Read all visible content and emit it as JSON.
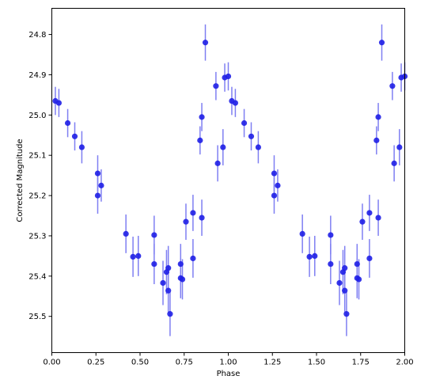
{
  "chart_data": {
    "type": "scatter",
    "title": "",
    "xlabel": "Phase",
    "ylabel": "Corrected Magnitude",
    "xlim": [
      0,
      2
    ],
    "ylim": [
      25.59,
      24.735
    ],
    "y_inverted": true,
    "grid": false,
    "x_ticks": [
      0,
      0.25,
      0.5,
      0.75,
      1.0,
      1.25,
      1.5,
      1.75,
      2.0
    ],
    "x_tick_labels": [
      "0.00",
      "0.25",
      "0.50",
      "0.75",
      "1.00",
      "1.25",
      "1.50",
      "1.75",
      "2.00"
    ],
    "y_ticks": [
      24.8,
      24.9,
      25.0,
      25.1,
      25.2,
      25.3,
      25.4,
      25.5
    ],
    "y_tick_labels": [
      "24.8",
      "24.9",
      "25.0",
      "25.1",
      "25.2",
      "25.3",
      "25.4",
      "25.5"
    ],
    "colors": {
      "marker": "#1f1fe6",
      "errorbar": "#7f7ff2"
    },
    "series": [
      {
        "points": [
          {
            "x": 0.02,
            "y": 24.965,
            "err": 0.035
          },
          {
            "x": 0.04,
            "y": 24.97,
            "err": 0.035
          },
          {
            "x": 0.09,
            "y": 25.02,
            "err": 0.035
          },
          {
            "x": 0.13,
            "y": 25.053,
            "err": 0.035
          },
          {
            "x": 0.17,
            "y": 25.08,
            "err": 0.04
          },
          {
            "x": 0.26,
            "y": 25.145,
            "err": 0.045
          },
          {
            "x": 0.26,
            "y": 25.2,
            "err": 0.045
          },
          {
            "x": 0.28,
            "y": 25.175,
            "err": 0.04
          },
          {
            "x": 0.42,
            "y": 25.295,
            "err": 0.048
          },
          {
            "x": 0.46,
            "y": 25.352,
            "err": 0.05
          },
          {
            "x": 0.49,
            "y": 25.35,
            "err": 0.05
          },
          {
            "x": 0.58,
            "y": 25.298,
            "err": 0.048
          },
          {
            "x": 0.58,
            "y": 25.37,
            "err": 0.05
          },
          {
            "x": 0.63,
            "y": 25.417,
            "err": 0.055
          },
          {
            "x": 0.65,
            "y": 25.39,
            "err": 0.055
          },
          {
            "x": 0.66,
            "y": 25.38,
            "err": 0.055
          },
          {
            "x": 0.66,
            "y": 25.436,
            "err": 0.055
          },
          {
            "x": 0.67,
            "y": 25.494,
            "err": 0.055
          },
          {
            "x": 0.73,
            "y": 25.405,
            "err": 0.05
          },
          {
            "x": 0.73,
            "y": 25.37,
            "err": 0.05
          },
          {
            "x": 0.74,
            "y": 25.408,
            "err": 0.05
          },
          {
            "x": 0.76,
            "y": 25.265,
            "err": 0.045
          },
          {
            "x": 0.8,
            "y": 25.243,
            "err": 0.045
          },
          {
            "x": 0.8,
            "y": 25.356,
            "err": 0.048
          },
          {
            "x": 0.85,
            "y": 25.255,
            "err": 0.045
          },
          {
            "x": 0.84,
            "y": 25.063,
            "err": 0.035
          },
          {
            "x": 0.85,
            "y": 25.005,
            "err": 0.035
          },
          {
            "x": 0.87,
            "y": 24.82,
            "err": 0.045
          },
          {
            "x": 0.93,
            "y": 24.928,
            "err": 0.035
          },
          {
            "x": 0.94,
            "y": 25.12,
            "err": 0.045
          },
          {
            "x": 0.97,
            "y": 25.08,
            "err": 0.045
          },
          {
            "x": 0.98,
            "y": 24.907,
            "err": 0.035
          },
          {
            "x": 1.0,
            "y": 24.904,
            "err": 0.035
          }
        ]
      }
    ]
  }
}
